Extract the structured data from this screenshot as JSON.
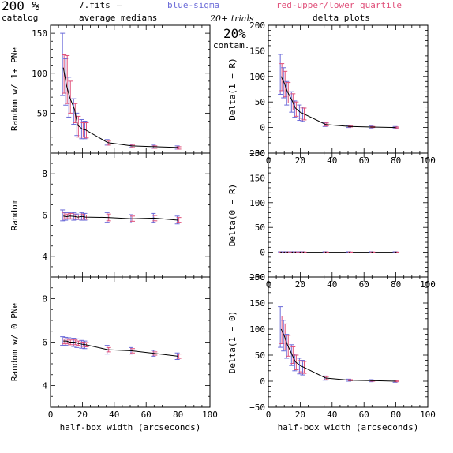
{
  "header": {
    "pct_big": "200 %",
    "catalog": "catalog",
    "fits": "7.fits",
    "dash": "–",
    "average_medians": "average medians",
    "blue_sigma": "blue-sigma",
    "red_quartile": "red-upper/lower quartile",
    "trials": "20+ trials",
    "delta_plots": "delta plots",
    "contam_pct": "20%",
    "contam": "contam."
  },
  "colors": {
    "sigma": "#6a6ad8",
    "quartile": "#e0507a",
    "line": "#000000",
    "zero_line": "#000000",
    "axis": "#000000"
  },
  "chart_data": [
    {
      "id": "p1",
      "type": "line",
      "xlabel": "",
      "ylabel": "Random w/ 1+ PNe",
      "xlim": [
        0,
        100
      ],
      "ylim": [
        0,
        160
      ],
      "xticks": [
        "",
        "",
        "",
        "",
        "",
        ""
      ],
      "yticks": [
        {
          "v": 50,
          "t": "50"
        },
        {
          "v": 100,
          "t": "100"
        },
        {
          "v": 150,
          "t": "150"
        }
      ],
      "zero_line": false,
      "x": [
        8,
        10,
        12,
        15,
        17,
        20,
        22,
        36,
        51,
        65,
        80
      ],
      "y": [
        107,
        85,
        70,
        55,
        35,
        30,
        29,
        13,
        9,
        8,
        7
      ],
      "sigma": [
        [
          72,
          150
        ],
        [
          60,
          118
        ],
        [
          45,
          95
        ],
        [
          36,
          68
        ],
        [
          22,
          50
        ],
        [
          18,
          42
        ],
        [
          18,
          40
        ],
        [
          10,
          17
        ],
        [
          7,
          11
        ],
        [
          6,
          10
        ],
        [
          5,
          9
        ]
      ],
      "quartile": [
        [
          75,
          123
        ],
        [
          62,
          122
        ],
        [
          50,
          90
        ],
        [
          38,
          62
        ],
        [
          20,
          46
        ],
        [
          20,
          38
        ],
        [
          19,
          38
        ],
        [
          10,
          15
        ],
        [
          7,
          10
        ],
        [
          6,
          9
        ],
        [
          5,
          8
        ]
      ]
    },
    {
      "id": "p2",
      "type": "line",
      "xlabel": "",
      "ylabel": "Delta(1 − R)",
      "xlim": [
        0,
        100
      ],
      "ylim": [
        -50,
        200
      ],
      "xticks": [
        "0",
        "20",
        "40",
        "60",
        "80",
        "100"
      ],
      "yticks": [
        {
          "v": -50,
          "t": "−50"
        },
        {
          "v": 0,
          "t": "0"
        },
        {
          "v": 50,
          "t": "50"
        },
        {
          "v": 100,
          "t": "100"
        },
        {
          "v": 150,
          "t": "150"
        },
        {
          "v": 200,
          "t": "200"
        }
      ],
      "zero_line": false,
      "x": [
        8,
        10,
        12,
        15,
        17,
        20,
        22,
        36,
        51,
        65,
        80
      ],
      "y": [
        100,
        87,
        70,
        52,
        38,
        30,
        27,
        6,
        2,
        1,
        0
      ],
      "sigma": [
        [
          65,
          143
        ],
        [
          58,
          117
        ],
        [
          44,
          90
        ],
        [
          30,
          70
        ],
        [
          20,
          52
        ],
        [
          14,
          44
        ],
        [
          12,
          40
        ],
        [
          2,
          10
        ],
        [
          0,
          4
        ],
        [
          -1,
          3
        ],
        [
          -2,
          2
        ]
      ],
      "quartile": [
        [
          72,
          125
        ],
        [
          60,
          110
        ],
        [
          48,
          88
        ],
        [
          34,
          66
        ],
        [
          22,
          50
        ],
        [
          18,
          40
        ],
        [
          15,
          38
        ],
        [
          3,
          9
        ],
        [
          1,
          3
        ],
        [
          0,
          2
        ],
        [
          -1,
          1
        ]
      ]
    },
    {
      "id": "p3",
      "type": "line",
      "xlabel": "",
      "ylabel": "Random",
      "xlim": [
        0,
        100
      ],
      "ylim": [
        3,
        9
      ],
      "xticks": [
        "",
        "",
        "",
        "",
        "",
        ""
      ],
      "yticks": [
        {
          "v": 4,
          "t": "4"
        },
        {
          "v": 6,
          "t": "6"
        },
        {
          "v": 8,
          "t": "8"
        }
      ],
      "zero_line": false,
      "x": [
        8,
        10,
        12,
        15,
        17,
        20,
        22,
        36,
        51,
        65,
        80
      ],
      "y": [
        5.95,
        5.92,
        5.95,
        5.93,
        5.9,
        5.93,
        5.9,
        5.88,
        5.82,
        5.85,
        5.75
      ],
      "sigma": [
        [
          5.72,
          6.25
        ],
        [
          5.75,
          6.12
        ],
        [
          5.8,
          6.12
        ],
        [
          5.75,
          6.12
        ],
        [
          5.78,
          6.05
        ],
        [
          5.75,
          6.12
        ],
        [
          5.75,
          6.08
        ],
        [
          5.65,
          6.12
        ],
        [
          5.62,
          6.02
        ],
        [
          5.65,
          6.08
        ],
        [
          5.57,
          5.95
        ]
      ],
      "quartile": [
        [
          5.8,
          6.12
        ],
        [
          5.82,
          6.05
        ],
        [
          5.82,
          6.08
        ],
        [
          5.8,
          6.05
        ],
        [
          5.8,
          6.0
        ],
        [
          5.8,
          6.05
        ],
        [
          5.8,
          6.0
        ],
        [
          5.72,
          6.05
        ],
        [
          5.7,
          5.95
        ],
        [
          5.72,
          5.98
        ],
        [
          5.65,
          5.88
        ]
      ]
    },
    {
      "id": "p4",
      "type": "line",
      "xlabel": "",
      "ylabel": "Delta(0 − R)",
      "xlim": [
        0,
        100
      ],
      "ylim": [
        -50,
        200
      ],
      "xticks": [
        "0",
        "20",
        "40",
        "60",
        "80",
        "100"
      ],
      "yticks": [
        {
          "v": -50,
          "t": "−50"
        },
        {
          "v": 0,
          "t": "0"
        },
        {
          "v": 50,
          "t": "50"
        },
        {
          "v": 100,
          "t": "100"
        },
        {
          "v": 150,
          "t": "150"
        },
        {
          "v": 200,
          "t": "200"
        }
      ],
      "zero_line": true,
      "x": [
        8,
        10,
        12,
        15,
        17,
        20,
        22,
        36,
        51,
        65,
        80
      ],
      "y": [
        0,
        0,
        0,
        0,
        0,
        0,
        0,
        0,
        0,
        0,
        0
      ],
      "sigma": [
        [
          -1,
          1
        ],
        [
          -1,
          1
        ],
        [
          -1,
          1
        ],
        [
          -1,
          1
        ],
        [
          -1,
          1
        ],
        [
          -1,
          1
        ],
        [
          -1,
          1
        ],
        [
          -1,
          1
        ],
        [
          -1,
          1
        ],
        [
          -1,
          1
        ],
        [
          -1,
          1
        ]
      ],
      "quartile": [
        [
          -0.5,
          0.5
        ],
        [
          -0.5,
          0.5
        ],
        [
          -0.5,
          0.5
        ],
        [
          -0.5,
          0.5
        ],
        [
          -0.5,
          0.5
        ],
        [
          -0.5,
          0.5
        ],
        [
          -0.5,
          0.5
        ],
        [
          -0.5,
          0.5
        ],
        [
          -0.5,
          0.5
        ],
        [
          -0.5,
          0.5
        ],
        [
          -0.5,
          0.5
        ]
      ]
    },
    {
      "id": "p5",
      "type": "line",
      "xlabel": "half-box width (arcseconds)",
      "ylabel": "Random w/ 0 PNe",
      "xlim": [
        0,
        100
      ],
      "ylim": [
        3,
        9
      ],
      "xticks": [
        "0",
        "20",
        "40",
        "60",
        "80",
        "100"
      ],
      "yticks": [
        {
          "v": 4,
          "t": "4"
        },
        {
          "v": 6,
          "t": "6"
        },
        {
          "v": 8,
          "t": "8"
        }
      ],
      "zero_line": false,
      "x": [
        8,
        10,
        12,
        15,
        17,
        20,
        22,
        36,
        51,
        65,
        80
      ],
      "y": [
        6.05,
        6.05,
        6.0,
        6.0,
        5.95,
        5.9,
        5.88,
        5.65,
        5.6,
        5.48,
        5.35
      ],
      "sigma": [
        [
          5.85,
          6.25
        ],
        [
          5.85,
          6.22
        ],
        [
          5.82,
          6.2
        ],
        [
          5.8,
          6.18
        ],
        [
          5.75,
          6.15
        ],
        [
          5.72,
          6.08
        ],
        [
          5.7,
          6.05
        ],
        [
          5.45,
          5.85
        ],
        [
          5.45,
          5.75
        ],
        [
          5.35,
          5.62
        ],
        [
          5.2,
          5.5
        ]
      ],
      "quartile": [
        [
          5.92,
          6.15
        ],
        [
          5.92,
          6.15
        ],
        [
          5.88,
          6.1
        ],
        [
          5.88,
          6.1
        ],
        [
          5.85,
          6.05
        ],
        [
          5.8,
          6.0
        ],
        [
          5.78,
          5.98
        ],
        [
          5.55,
          5.75
        ],
        [
          5.5,
          5.7
        ],
        [
          5.4,
          5.55
        ],
        [
          5.25,
          5.45
        ]
      ]
    },
    {
      "id": "p6",
      "type": "line",
      "xlabel": "half-box width (arcseconds)",
      "ylabel": "Delta(1 − 0)",
      "xlim": [
        0,
        100
      ],
      "ylim": [
        -50,
        200
      ],
      "xticks": [
        "0",
        "20",
        "40",
        "60",
        "80",
        "100"
      ],
      "yticks": [
        {
          "v": -50,
          "t": "−50"
        },
        {
          "v": 0,
          "t": "0"
        },
        {
          "v": 50,
          "t": "50"
        },
        {
          "v": 100,
          "t": "100"
        },
        {
          "v": 150,
          "t": "150"
        },
        {
          "v": 200,
          "t": "200"
        }
      ],
      "zero_line": false,
      "x": [
        8,
        10,
        12,
        15,
        17,
        20,
        22,
        36,
        51,
        65,
        80
      ],
      "y": [
        100,
        87,
        70,
        50,
        37,
        30,
        27,
        6,
        2,
        1,
        0
      ],
      "sigma": [
        [
          65,
          143
        ],
        [
          58,
          117
        ],
        [
          44,
          90
        ],
        [
          30,
          70
        ],
        [
          20,
          52
        ],
        [
          14,
          44
        ],
        [
          12,
          40
        ],
        [
          2,
          10
        ],
        [
          0,
          4
        ],
        [
          -1,
          3
        ],
        [
          -2,
          2
        ]
      ],
      "quartile": [
        [
          72,
          125
        ],
        [
          60,
          110
        ],
        [
          48,
          88
        ],
        [
          34,
          66
        ],
        [
          22,
          50
        ],
        [
          18,
          40
        ],
        [
          15,
          38
        ],
        [
          3,
          9
        ],
        [
          1,
          3
        ],
        [
          0,
          2
        ],
        [
          -1,
          1
        ]
      ]
    }
  ]
}
